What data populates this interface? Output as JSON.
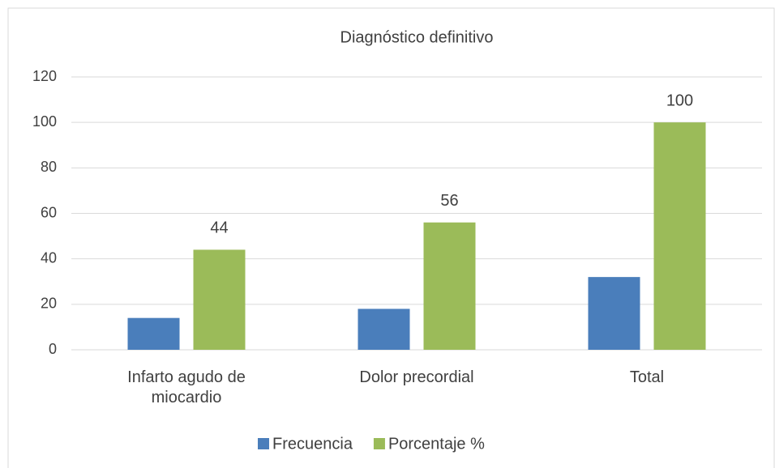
{
  "chart_data": {
    "type": "bar",
    "title": "Diagnóstico definitivo",
    "categories": [
      "Infarto agudo de miocardio",
      "Dolor precordial",
      "Total"
    ],
    "series": [
      {
        "name": "Frecuencia",
        "color": "#4a7ebb",
        "values": [
          14,
          18,
          32
        ],
        "show_labels": false
      },
      {
        "name": "Porcentaje %",
        "color": "#9bbb59",
        "values": [
          44,
          56,
          100
        ],
        "show_labels": true
      }
    ],
    "ylim": [
      0,
      120
    ],
    "yticks": [
      0,
      20,
      40,
      60,
      80,
      100,
      120
    ],
    "grid": true,
    "legend": "bottom"
  }
}
